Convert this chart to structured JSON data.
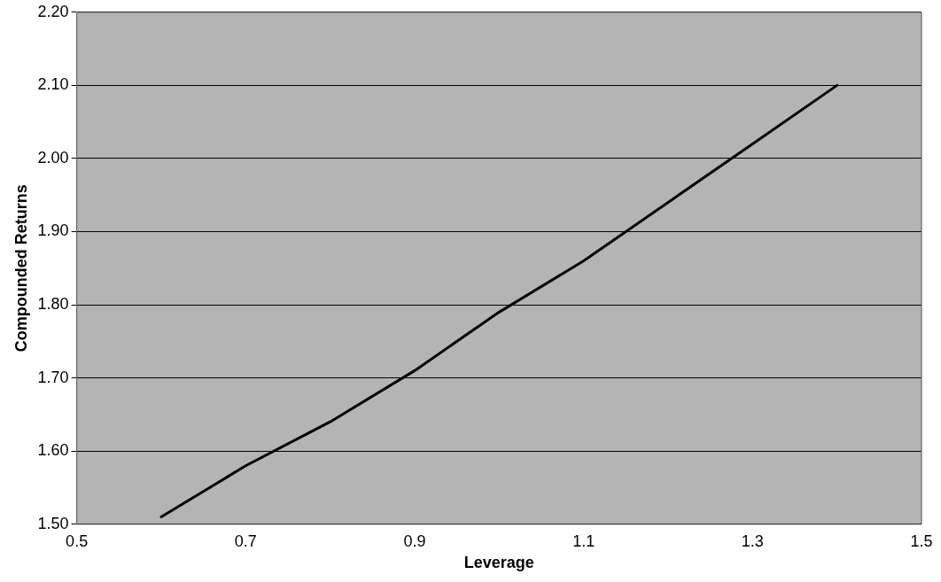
{
  "chart_data": {
    "type": "line",
    "xlabel": "Leverage",
    "ylabel": "Compounded Returns",
    "x": [
      0.6,
      0.7,
      0.8,
      0.9,
      1.0,
      1.1,
      1.2,
      1.3,
      1.4
    ],
    "series": [
      {
        "color": "#000000",
        "values": [
          1.51,
          1.58,
          1.64,
          1.71,
          1.79,
          1.86,
          1.94,
          2.02,
          2.1
        ]
      }
    ],
    "xlim": [
      0.5,
      1.5
    ],
    "xticks": [
      0.5,
      0.7,
      0.9,
      1.1,
      1.3,
      1.5
    ],
    "ylim": [
      1.5,
      2.2
    ],
    "yticks": [
      {
        "value": 1.5,
        "label": "1.50"
      },
      {
        "value": 1.6,
        "label": "1.60"
      },
      {
        "value": 1.7,
        "label": "1.70"
      },
      {
        "value": 1.8,
        "label": "1.80"
      },
      {
        "value": 1.9,
        "label": "1.90"
      },
      {
        "value": 2.0,
        "label": "2.00"
      },
      {
        "value": 2.1,
        "label": "2.10"
      },
      {
        "value": 2.2,
        "label": "2.20"
      }
    ],
    "grid": "y",
    "marker": "none",
    "line_style": "solid",
    "legend": false
  }
}
